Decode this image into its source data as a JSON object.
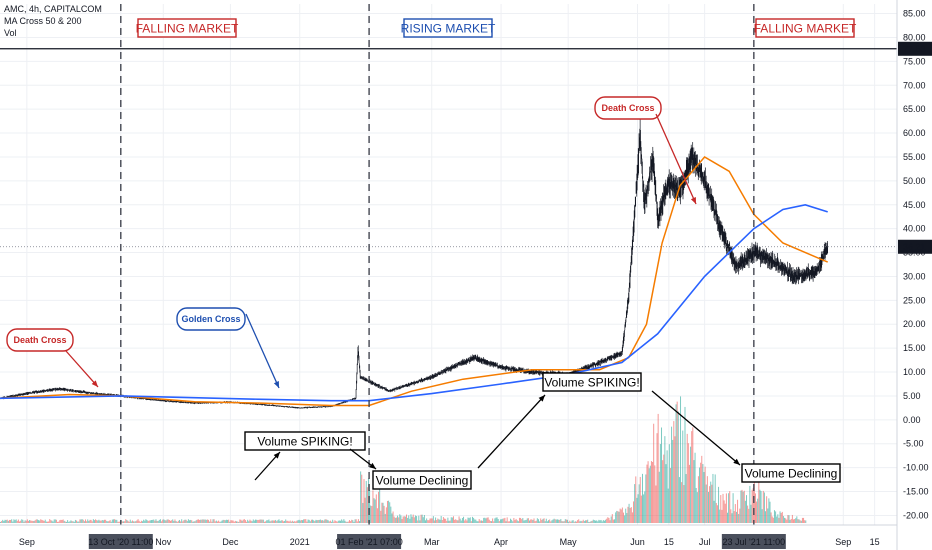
{
  "header": {
    "symbol_line": "AMC, 4h, CAPITALCOM",
    "indicator_line": "MA Cross 50 & 200",
    "volume_line": "Vol"
  },
  "regions": [
    {
      "label": "FALLING MARKET",
      "color": "#c62828"
    },
    {
      "label": "RISING MARKET",
      "color": "#1e4fb0"
    },
    {
      "label": "FALLING MARKET",
      "color": "#c62828"
    }
  ],
  "callouts": [
    {
      "label": "Death Cross",
      "color": "#c62828"
    },
    {
      "label": "Golden Cross",
      "color": "#1e4fb0"
    },
    {
      "label": "Death Cross",
      "color": "#c62828"
    }
  ],
  "volume_notes": [
    "Volume SPIKING!",
    "Volume Declining",
    "Volume SPIKING!",
    "Volume Declining"
  ],
  "price_badges": {
    "level": "77.63",
    "last": "36.21"
  },
  "colors": {
    "price": "#131722",
    "ma50": "#f57c00",
    "ma200": "#2962ff",
    "vol_up": "#26a69a",
    "vol_down": "#ef5350",
    "region_red": "#c62828",
    "region_blue": "#1e4fb0"
  },
  "chart_data": {
    "type": "line",
    "symbol": "AMC",
    "timeframe": "4h",
    "source": "CAPITALCOM",
    "x_ticks": [
      "Sep",
      "13 Oct '20  11:00",
      "Nov",
      "Dec",
      "2021",
      "01 Feb '21  07:00",
      "Mar",
      "Apr",
      "May",
      "Jun",
      "15",
      "Jul",
      "23 Jul '21  11:00",
      "Sep",
      "15"
    ],
    "y_ticks": [
      85,
      80,
      75,
      70,
      65,
      60,
      55,
      50,
      45,
      40,
      35,
      30,
      25,
      20,
      15,
      10,
      5,
      0,
      -5,
      -10,
      -15,
      -20
    ],
    "ylim": [
      -22,
      87
    ],
    "xlim": [
      "2020-08-20",
      "2021-09-25"
    ],
    "horizontal_level": 77.63,
    "last_price": 36.21,
    "event_dates": [
      "2020-10-13",
      "2021-02-01",
      "2021-07-23"
    ],
    "series": [
      {
        "name": "AMC",
        "style": "candles",
        "x": [
          "2020-08-20",
          "2020-09-01",
          "2020-09-15",
          "2020-10-01",
          "2020-10-13",
          "2020-11-01",
          "2020-11-15",
          "2020-12-01",
          "2020-12-15",
          "2021-01-01",
          "2021-01-15",
          "2021-01-26",
          "2021-01-27",
          "2021-01-28",
          "2021-02-01",
          "2021-02-10",
          "2021-03-01",
          "2021-03-10",
          "2021-03-20",
          "2021-04-01",
          "2021-04-15",
          "2021-05-01",
          "2021-05-15",
          "2021-05-25",
          "2021-05-28",
          "2021-06-01",
          "2021-06-02",
          "2021-06-04",
          "2021-06-08",
          "2021-06-10",
          "2021-06-15",
          "2021-06-20",
          "2021-06-25",
          "2021-07-01",
          "2021-07-08",
          "2021-07-15",
          "2021-07-23",
          "2021-08-01",
          "2021-08-10",
          "2021-08-20",
          "2021-08-25"
        ],
        "values": [
          4.5,
          5.5,
          6.5,
          5.5,
          5,
          4,
          3.5,
          3.7,
          3.2,
          2.5,
          2.8,
          4.5,
          15,
          9,
          8,
          6,
          9,
          11,
          13,
          11,
          10,
          9.5,
          12,
          14,
          26,
          52,
          60,
          45,
          55,
          42,
          50,
          48,
          55,
          50,
          40,
          32,
          35,
          33,
          30,
          31,
          36.2
        ]
      },
      {
        "name": "MA Cross 50",
        "style": "line",
        "x": [
          "2020-08-20",
          "2020-09-20",
          "2020-10-13",
          "2020-11-15",
          "2020-12-15",
          "2021-01-15",
          "2021-02-01",
          "2021-02-20",
          "2021-03-15",
          "2021-04-15",
          "2021-05-15",
          "2021-05-28",
          "2021-06-05",
          "2021-06-12",
          "2021-06-20",
          "2021-07-01",
          "2021-07-12",
          "2021-07-23",
          "2021-08-05",
          "2021-08-20",
          "2021-08-25"
        ],
        "values": [
          4.5,
          5.3,
          5,
          3.8,
          3.5,
          3,
          3,
          6,
          8.5,
          10.5,
          10.5,
          13,
          20,
          37,
          49,
          55,
          52,
          43,
          37,
          34,
          33
        ]
      },
      {
        "name": "MA Cross 200",
        "style": "line",
        "x": [
          "2020-08-20",
          "2020-10-13",
          "2020-12-15",
          "2021-01-15",
          "2021-02-01",
          "2021-03-01",
          "2021-04-01",
          "2021-05-01",
          "2021-05-25",
          "2021-06-10",
          "2021-07-01",
          "2021-07-23",
          "2021-08-05",
          "2021-08-15",
          "2021-08-25"
        ],
        "values": [
          4.5,
          5,
          4.3,
          4,
          4,
          5.5,
          7.5,
          9.5,
          12,
          18,
          30,
          40,
          44,
          45,
          43.5
        ]
      },
      {
        "name": "Vol",
        "style": "histogram",
        "x": [
          "2021-01-28",
          "2021-02-01",
          "2021-02-15",
          "2021-03-15",
          "2021-04-15",
          "2021-05-15",
          "2021-05-28",
          "2021-06-02",
          "2021-06-05",
          "2021-06-10",
          "2021-06-15",
          "2021-06-20",
          "2021-07-01",
          "2021-07-15",
          "2021-07-23",
          "2021-08-01",
          "2021-08-15"
        ],
        "values": [
          9,
          7,
          1.5,
          1,
          0.8,
          0.5,
          3,
          11,
          13.5,
          17,
          16,
          22,
          9.5,
          4,
          9,
          2,
          1
        ]
      }
    ]
  }
}
